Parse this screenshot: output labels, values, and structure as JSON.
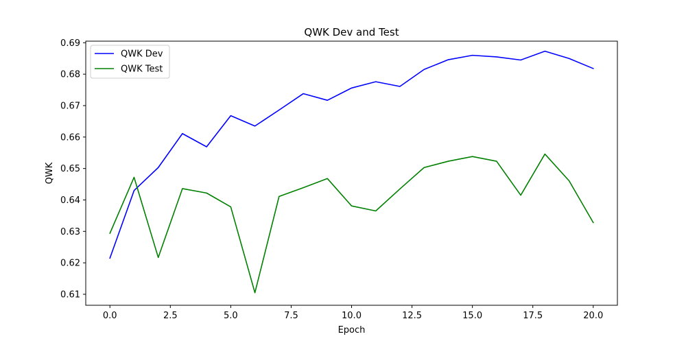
{
  "chart_data": {
    "type": "line",
    "title": "QWK Dev and Test",
    "xlabel": "Epoch",
    "ylabel": "QWK",
    "xlim": [
      -1.0,
      21.0
    ],
    "ylim": [
      0.6065,
      0.6905
    ],
    "xticks": [
      0.0,
      2.5,
      5.0,
      7.5,
      10.0,
      12.5,
      15.0,
      17.5,
      20.0
    ],
    "xtick_labels": [
      "0.0",
      "2.5",
      "5.0",
      "7.5",
      "10.0",
      "12.5",
      "15.0",
      "17.5",
      "20.0"
    ],
    "yticks": [
      0.61,
      0.62,
      0.63,
      0.64,
      0.65,
      0.66,
      0.67,
      0.68,
      0.69
    ],
    "ytick_labels": [
      "0.61",
      "0.62",
      "0.63",
      "0.64",
      "0.65",
      "0.66",
      "0.67",
      "0.68",
      "0.69"
    ],
    "grid": false,
    "legend_position": "upper-left",
    "x": [
      0,
      1,
      2,
      3,
      4,
      5,
      6,
      7,
      8,
      9,
      10,
      11,
      12,
      13,
      14,
      15,
      16,
      17,
      18,
      19,
      20
    ],
    "series": [
      {
        "name": "QWK Dev",
        "color": "#0000ff",
        "values": [
          0.6215,
          0.643,
          0.6503,
          0.6611,
          0.6569,
          0.6668,
          0.6635,
          0.6686,
          0.6738,
          0.6717,
          0.6756,
          0.6776,
          0.6761,
          0.6815,
          0.6846,
          0.686,
          0.6855,
          0.6845,
          0.6873,
          0.685,
          0.6818
        ]
      },
      {
        "name": "QWK Test",
        "color": "#008000",
        "values": [
          0.6294,
          0.6472,
          0.6217,
          0.6436,
          0.6422,
          0.6378,
          0.6105,
          0.6411,
          0.6439,
          0.6468,
          0.6381,
          0.6365,
          0.6435,
          0.6503,
          0.6523,
          0.6538,
          0.6523,
          0.6415,
          0.6546,
          0.6461,
          0.6328
        ]
      }
    ]
  }
}
